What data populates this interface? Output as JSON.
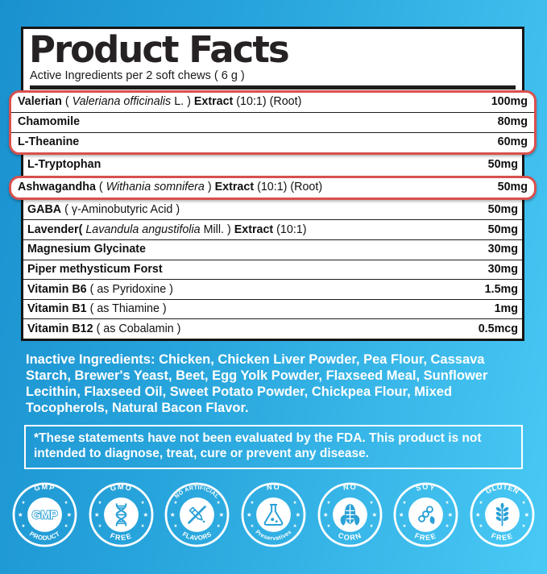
{
  "header": {
    "title": "Product Facts",
    "subtitle": "Active Ingredients per 2 soft chews ( 6 g )"
  },
  "colors": {
    "highlight_red": "#d8504e",
    "icon_blue": "#2aa0d6",
    "background_blue_start": "#1a91cf",
    "background_blue_end": "#49c9f5",
    "panel_white": "#ffffff",
    "text_black": "#161616",
    "text_white": "#ffffff"
  },
  "panel": {
    "groups": [
      {
        "highlight": true,
        "rows": [
          {
            "segments": [
              {
                "t": "Valerian",
                "b": 1
              },
              {
                "t": " ( "
              },
              {
                "t": "Valeriana officinalis",
                "i": 1
              },
              {
                "t": " L. ) "
              },
              {
                "t": "Extract",
                "b": 1
              },
              {
                "t": " (10:1) (Root)"
              }
            ],
            "value": "100mg"
          },
          {
            "segments": [
              {
                "t": "Chamomile",
                "b": 1
              }
            ],
            "value": "80mg"
          },
          {
            "segments": [
              {
                "t": "L-Theanine",
                "b": 1
              }
            ],
            "value": "60mg"
          }
        ]
      },
      {
        "highlight": false,
        "rows": [
          {
            "segments": [
              {
                "t": "L-Tryptophan",
                "b": 1
              }
            ],
            "value": "50mg"
          }
        ]
      },
      {
        "highlight": true,
        "rows": [
          {
            "segments": [
              {
                "t": "Ashwagandha",
                "b": 1
              },
              {
                "t": " ( "
              },
              {
                "t": "Withania somnifera",
                "i": 1
              },
              {
                "t": " ) "
              },
              {
                "t": "Extract",
                "b": 1
              },
              {
                "t": " (10:1) (Root)"
              }
            ],
            "value": "50mg"
          }
        ]
      },
      {
        "highlight": false,
        "rows": [
          {
            "segments": [
              {
                "t": "GABA",
                "b": 1
              },
              {
                "t": " ( γ-Aminobutyric Acid )"
              }
            ],
            "value": "50mg"
          },
          {
            "segments": [
              {
                "t": "Lavender(",
                "b": 1
              },
              {
                "t": " "
              },
              {
                "t": "Lavandula angustifolia",
                "i": 1
              },
              {
                "t": " Mill. ) "
              },
              {
                "t": "Extract",
                "b": 1
              },
              {
                "t": " (10:1)"
              }
            ],
            "value": "50mg"
          },
          {
            "segments": [
              {
                "t": "Magnesium Glycinate",
                "b": 1
              }
            ],
            "value": "30mg"
          },
          {
            "segments": [
              {
                "t": "Piper methysticum Forst",
                "b": 1
              }
            ],
            "value": "30mg"
          },
          {
            "segments": [
              {
                "t": "Vitamin B6",
                "b": 1
              },
              {
                "t": " ( as Pyridoxine )"
              }
            ],
            "value": "1.5mg"
          },
          {
            "segments": [
              {
                "t": "Vitamin B1",
                "b": 1
              },
              {
                "t": " ( as Thiamine )"
              }
            ],
            "value": "1mg"
          },
          {
            "segments": [
              {
                "t": "Vitamin B12",
                "b": 1
              },
              {
                "t": " ( as Cobalamin )"
              }
            ],
            "value": "0.5mcg"
          }
        ]
      }
    ]
  },
  "inactive": {
    "label": "Inactive Ingredients:",
    "text": "Chicken, Chicken Liver Powder, Pea Flour, Cassava Starch, Brewer's Yeast, Beet, Egg Yolk Powder, Flaxseed Meal, Sunflower Lecithin, Flaxseed Oil, Sweet Potato Powder, Chickpea Flour, Mixed Tocopherols, Natural Bacon Flavor."
  },
  "disclaimer": {
    "text": "*These statements have not been evaluated by the FDA. This product is not intended to diagnose, treat, cure or prevent any disease."
  },
  "badges": [
    {
      "icon": "gmp-seal-icon",
      "top": "GMP",
      "bottom": "PRODUCT",
      "center_text": "GMP"
    },
    {
      "icon": "dna-icon",
      "top": "GMO",
      "bottom": "FREE"
    },
    {
      "icon": "no-artificial-flavors-icon",
      "top": "NO ARTIFICIAL",
      "bottom": "FLAVORS"
    },
    {
      "icon": "flask-icon",
      "top": "NO",
      "bottom": "Preservatives"
    },
    {
      "icon": "corn-icon",
      "top": "NO",
      "bottom": "CORN"
    },
    {
      "icon": "soy-icon",
      "top": "SOY",
      "bottom": "FREE"
    },
    {
      "icon": "wheat-icon",
      "top": "GLUTEN",
      "bottom": "FREE"
    }
  ]
}
